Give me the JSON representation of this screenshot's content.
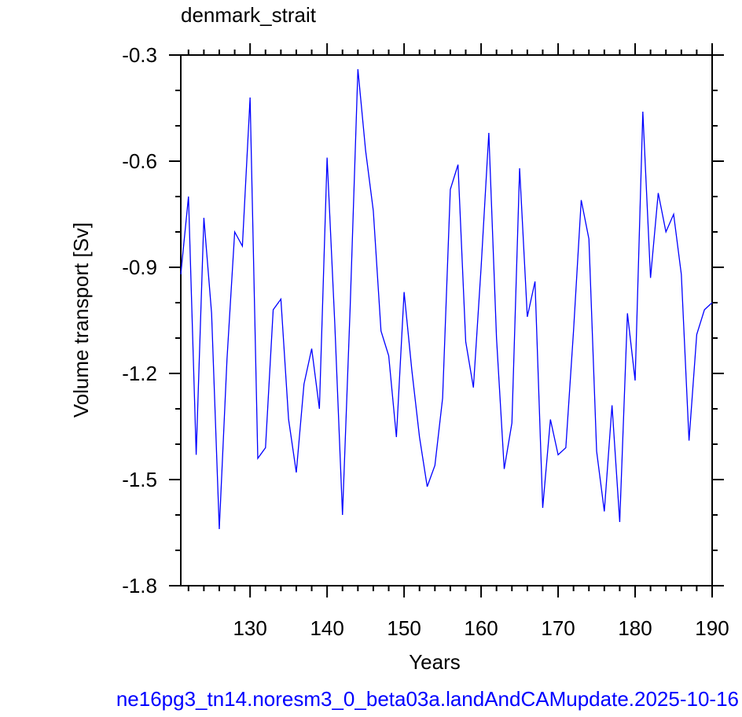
{
  "chart_data": {
    "type": "line",
    "title": "denmark_strait",
    "xlabel": "Years",
    "ylabel": "Volume transport [Sv]",
    "footer": "ne16pg3_tn14.noresm3_0_beta03a.landAndCAMupdate.2025-10-16",
    "x": [
      121,
      122,
      123,
      124,
      125,
      126,
      127,
      128,
      129,
      130,
      131,
      132,
      133,
      134,
      135,
      136,
      137,
      138,
      139,
      140,
      141,
      142,
      143,
      144,
      145,
      146,
      147,
      148,
      149,
      150,
      151,
      152,
      153,
      154,
      155,
      156,
      157,
      158,
      159,
      160,
      161,
      162,
      163,
      164,
      165,
      166,
      167,
      168,
      169,
      170,
      171,
      172,
      173,
      174,
      175,
      176,
      177,
      178,
      179,
      180,
      181,
      182,
      183,
      184,
      185,
      186,
      187,
      188,
      189,
      190
    ],
    "series": [
      {
        "name": "denmark_strait",
        "color": "#0000ff",
        "values": [
          -0.92,
          -0.7,
          -1.43,
          -0.76,
          -1.03,
          -1.64,
          -1.16,
          -0.8,
          -0.84,
          -0.42,
          -1.44,
          -1.41,
          -1.02,
          -0.99,
          -1.33,
          -1.48,
          -1.23,
          -1.13,
          -1.3,
          -0.59,
          -1.06,
          -1.6,
          -1.01,
          -0.34,
          -0.57,
          -0.74,
          -1.08,
          -1.15,
          -1.38,
          -0.97,
          -1.19,
          -1.38,
          -1.52,
          -1.46,
          -1.27,
          -0.68,
          -0.61,
          -1.11,
          -1.24,
          -0.9,
          -0.52,
          -1.1,
          -1.47,
          -1.34,
          -0.62,
          -1.04,
          -0.94,
          -1.58,
          -1.33,
          -1.43,
          -1.41,
          -1.08,
          -0.71,
          -0.82,
          -1.42,
          -1.59,
          -1.29,
          -1.62,
          -1.03,
          -1.22,
          -0.46,
          -0.93,
          -0.69,
          -0.8,
          -0.75,
          -0.92,
          -1.39,
          -1.09,
          -1.02,
          -1.0
        ]
      }
    ],
    "xlim": [
      121,
      190
    ],
    "xticks": [
      130,
      140,
      150,
      160,
      170,
      180,
      190
    ],
    "ylim": [
      -1.8,
      -0.3
    ],
    "yticks": [
      -1.8,
      -1.5,
      -1.2,
      -0.9,
      -0.6,
      -0.3
    ],
    "grid": false
  }
}
